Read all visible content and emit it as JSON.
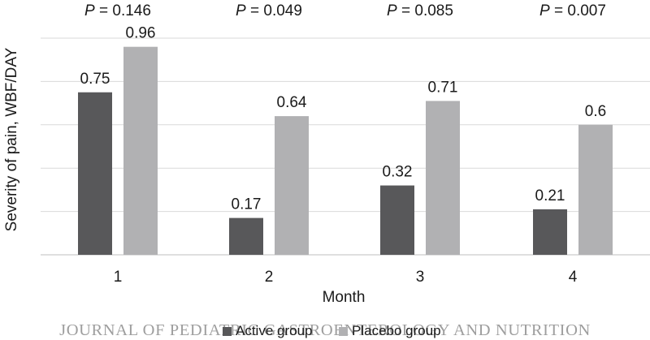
{
  "watermark": "JOURNAL OF PEDIATRIC GASTROENTEROLOGY AND NUTRITION",
  "colors": {
    "active": "#58585a",
    "placebo": "#b1b1b3",
    "gridline": "#d9d9d9",
    "axis": "#bfbfbf",
    "text": "#1a1a1a",
    "watermark": "#9e9e9e"
  },
  "chart_data": {
    "type": "bar",
    "title": "",
    "xlabel": "Month",
    "ylabel": "Severity of pain, WBF/DAY",
    "categories": [
      "1",
      "2",
      "3",
      "4"
    ],
    "p_value_prefix": "P",
    "p_values": [
      "= 0.146",
      "= 0.049",
      "= 0.085",
      "= 0.007"
    ],
    "series": [
      {
        "name": "Active group",
        "values": [
          0.75,
          0.17,
          0.32,
          0.21
        ],
        "labels": [
          "0.75",
          "0.17",
          "0.32",
          "0.21"
        ]
      },
      {
        "name": "Placebo group",
        "values": [
          0.96,
          0.64,
          0.71,
          0.6
        ],
        "labels": [
          "0.96",
          "0.64",
          "0.71",
          "0.6"
        ]
      }
    ],
    "ylim": [
      0,
      1
    ],
    "gridlines": [
      0.2,
      0.4,
      0.6,
      0.8,
      1.0
    ],
    "y_tick_labels_shown": false,
    "grid": true,
    "legend_position": "bottom"
  }
}
